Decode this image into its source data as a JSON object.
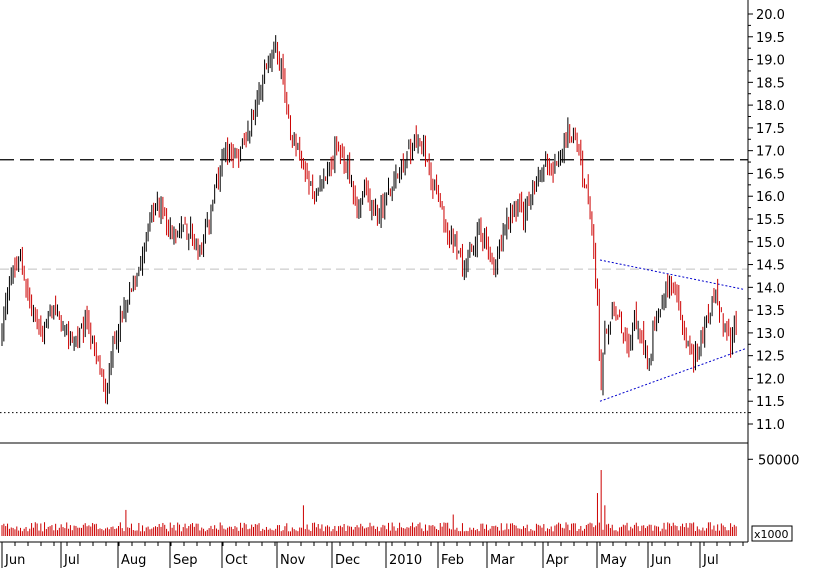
{
  "chart_data": {
    "type": "candlestick",
    "price_axis": {
      "ylim": [
        10.6,
        20.2
      ],
      "ticks": [
        "20.0",
        "19.5",
        "19.0",
        "18.5",
        "18.0",
        "17.5",
        "17.0",
        "16.5",
        "16.0",
        "15.5",
        "15.0",
        "14.5",
        "14.0",
        "13.5",
        "13.0",
        "12.5",
        "12.0",
        "11.5",
        "11.0"
      ],
      "tick_values": [
        20.0,
        19.5,
        19.0,
        18.5,
        18.0,
        17.5,
        17.0,
        16.5,
        16.0,
        15.5,
        15.0,
        14.5,
        14.0,
        13.5,
        13.0,
        12.5,
        12.0,
        11.5,
        11.0
      ]
    },
    "volume_axis": {
      "ylim": [
        0,
        58000
      ],
      "tick_label": "50000",
      "tick_value": 50000,
      "unit": "x1000"
    },
    "months": [
      "Jun",
      "Jul",
      "Aug",
      "Sep",
      "Oct",
      "Nov",
      "Dec",
      "2010",
      "Feb",
      "Mar",
      "Apr",
      "May",
      "Jun",
      "Jul"
    ],
    "horizontal_lines": [
      {
        "value": 16.8,
        "style": "long-dash",
        "color": "#000000"
      },
      {
        "value": 14.4,
        "style": "dash",
        "color": "#c0c0c0"
      },
      {
        "value": 11.25,
        "style": "dotted",
        "color": "#000000"
      }
    ],
    "pattern": {
      "name": "symmetrical triangle",
      "color": "#0000cc",
      "upper_line": [
        [
          "May",
          14.6
        ],
        [
          "end",
          13.95
        ]
      ],
      "lower_line": [
        [
          "May",
          11.5
        ],
        [
          "end",
          12.65
        ]
      ]
    },
    "price_path": [
      [
        0,
        13.0
      ],
      [
        4,
        14.2
      ],
      [
        10,
        14.6
      ],
      [
        16,
        13.5
      ],
      [
        22,
        13.0
      ],
      [
        28,
        13.6
      ],
      [
        34,
        13.0
      ],
      [
        40,
        12.8
      ],
      [
        46,
        13.3
      ],
      [
        50,
        12.6
      ],
      [
        54,
        12.0
      ],
      [
        56,
        11.5
      ],
      [
        58,
        12.3
      ],
      [
        62,
        13.0
      ],
      [
        66,
        13.5
      ],
      [
        70,
        14.0
      ],
      [
        74,
        14.5
      ],
      [
        78,
        15.2
      ],
      [
        82,
        15.7
      ],
      [
        86,
        15.8
      ],
      [
        90,
        15.3
      ],
      [
        94,
        15.0
      ],
      [
        98,
        15.4
      ],
      [
        102,
        15.2
      ],
      [
        106,
        14.9
      ],
      [
        108,
        14.8
      ],
      [
        112,
        15.5
      ],
      [
        116,
        16.2
      ],
      [
        120,
        16.8
      ],
      [
        124,
        17.0
      ],
      [
        128,
        16.9
      ],
      [
        132,
        17.3
      ],
      [
        136,
        17.8
      ],
      [
        140,
        18.5
      ],
      [
        144,
        19.0
      ],
      [
        148,
        19.3
      ],
      [
        152,
        18.6
      ],
      [
        154,
        17.9
      ],
      [
        158,
        17.2
      ],
      [
        162,
        16.8
      ],
      [
        166,
        16.3
      ],
      [
        170,
        16.0
      ],
      [
        174,
        16.4
      ],
      [
        178,
        16.8
      ],
      [
        182,
        17.0
      ],
      [
        186,
        16.7
      ],
      [
        190,
        16.2
      ],
      [
        192,
        15.6
      ],
      [
        196,
        16.1
      ],
      [
        200,
        15.8
      ],
      [
        204,
        15.6
      ],
      [
        208,
        16.0
      ],
      [
        212,
        16.3
      ],
      [
        216,
        16.6
      ],
      [
        220,
        17.0
      ],
      [
        224,
        17.2
      ],
      [
        228,
        17.0
      ],
      [
        232,
        16.5
      ],
      [
        236,
        15.9
      ],
      [
        240,
        15.3
      ],
      [
        244,
        15.0
      ],
      [
        248,
        14.6
      ],
      [
        250,
        14.3
      ],
      [
        254,
        14.8
      ],
      [
        258,
        15.2
      ],
      [
        262,
        14.9
      ],
      [
        266,
        14.4
      ],
      [
        270,
        15.0
      ],
      [
        274,
        15.5
      ],
      [
        278,
        15.8
      ],
      [
        282,
        15.6
      ],
      [
        286,
        16.0
      ],
      [
        290,
        16.3
      ],
      [
        294,
        16.8
      ],
      [
        298,
        16.6
      ],
      [
        302,
        16.9
      ],
      [
        306,
        17.4
      ],
      [
        310,
        17.3
      ],
      [
        314,
        16.6
      ],
      [
        318,
        15.5
      ],
      [
        320,
        14.8
      ],
      [
        322,
        13.6
      ],
      [
        324,
        11.8
      ],
      [
        326,
        13.0
      ],
      [
        330,
        13.5
      ],
      [
        334,
        13.2
      ],
      [
        338,
        12.6
      ],
      [
        342,
        13.3
      ],
      [
        346,
        13.0
      ],
      [
        350,
        12.3
      ],
      [
        352,
        13.1
      ],
      [
        356,
        13.6
      ],
      [
        360,
        14.0
      ],
      [
        362,
        14.2
      ],
      [
        366,
        13.5
      ],
      [
        370,
        12.8
      ],
      [
        374,
        12.4
      ],
      [
        378,
        12.9
      ],
      [
        382,
        13.4
      ],
      [
        386,
        13.8
      ],
      [
        390,
        13.2
      ],
      [
        394,
        12.7
      ],
      [
        396,
        13.1
      ]
    ],
    "volume_spikes": [
      [
        324,
        43000
      ],
      [
        322,
        28000
      ],
      [
        67,
        17000
      ],
      [
        163,
        20000
      ],
      [
        244,
        14000
      ],
      [
        326,
        20000
      ]
    ],
    "colors": {
      "up": "#000000",
      "down": "#cc0000",
      "volume": "#cc0000"
    }
  }
}
